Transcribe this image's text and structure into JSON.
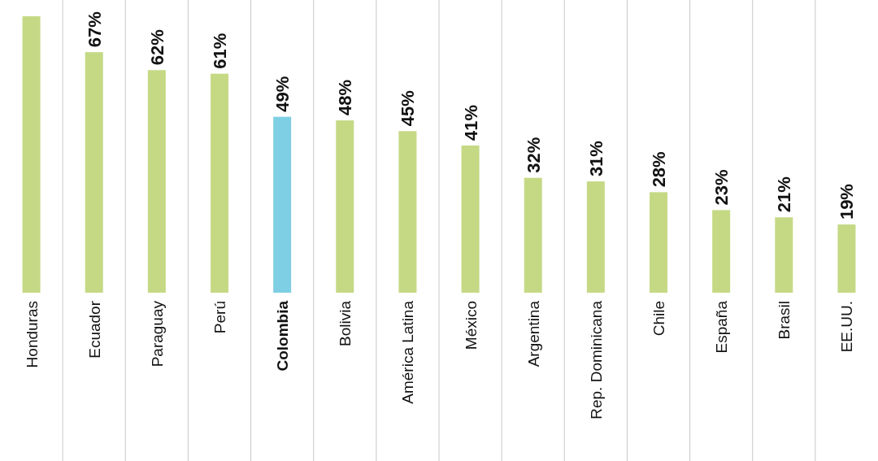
{
  "chart_data": {
    "type": "bar",
    "categories": [
      "Honduras",
      "Ecuador",
      "Paraguay",
      "Perú",
      "Colombia",
      "Bolivia",
      "América Latina",
      "México",
      "Argentina",
      "Rep. Dominicana",
      "Chile",
      "España",
      "Brasil",
      "EE.UU."
    ],
    "values": [
      77,
      67,
      62,
      61,
      49,
      48,
      45,
      41,
      32,
      31,
      28,
      23,
      21,
      19
    ],
    "colors": [
      "#c5d985",
      "#c5d985",
      "#c5d985",
      "#c5d985",
      "#7ecfe3",
      "#c5d985",
      "#c5d985",
      "#c5d985",
      "#c5d985",
      "#c5d985",
      "#c5d985",
      "#c5d985",
      "#c5d985",
      "#c5d985"
    ],
    "value_labels": [
      null,
      "67%",
      "62%",
      "61%",
      "49%",
      "48%",
      "45%",
      "41%",
      "32%",
      "31%",
      "28%",
      "23%",
      "21%",
      "19%"
    ],
    "grid": "x"
  }
}
